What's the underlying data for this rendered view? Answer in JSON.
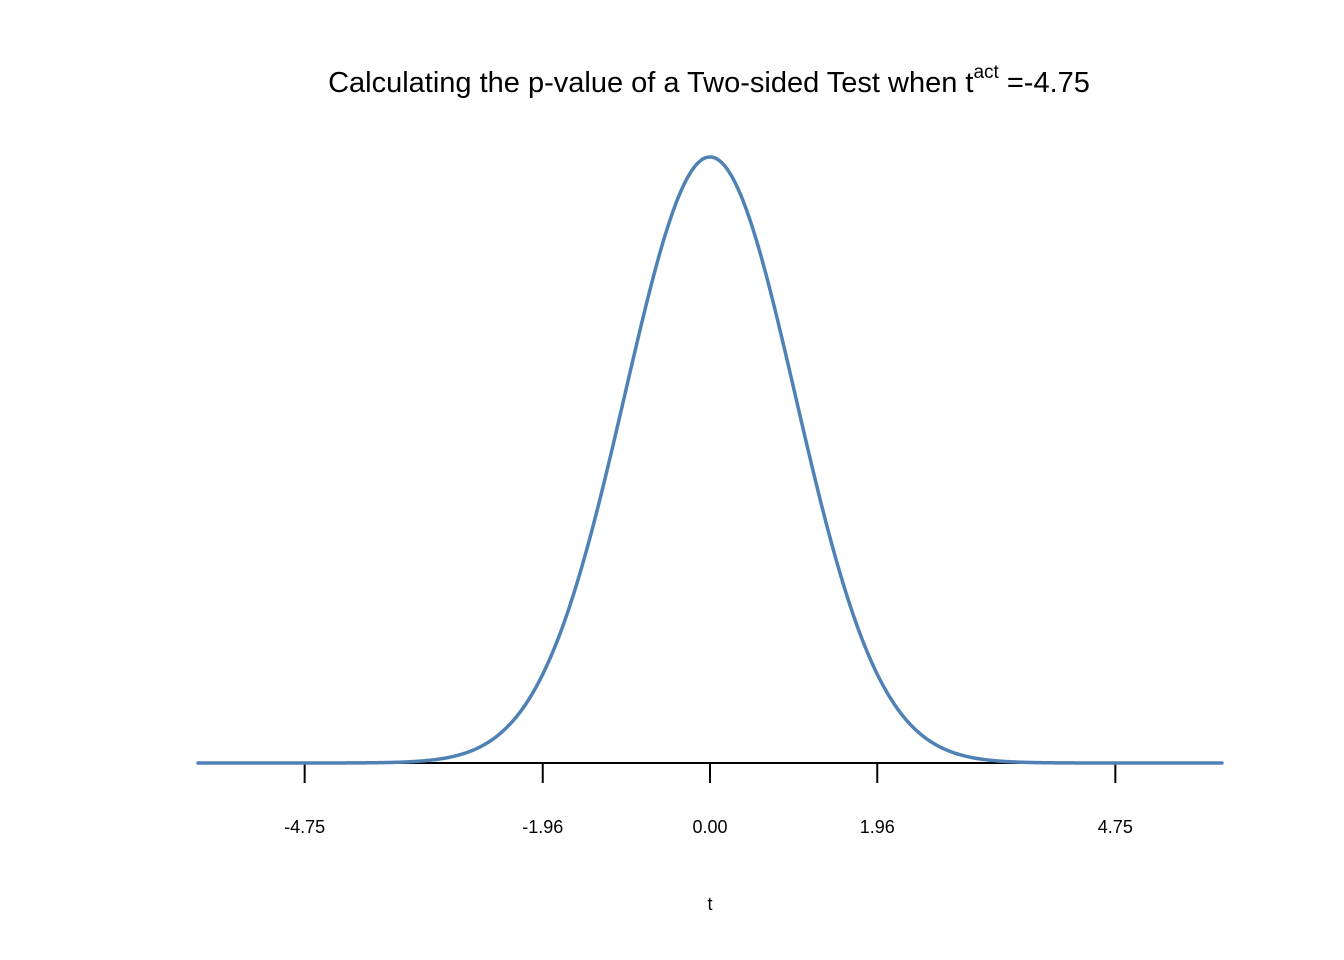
{
  "chart_data": {
    "type": "line",
    "title": {
      "main": "Calculating the p-value of a Two-sided Test when t",
      "superscript": "act",
      "suffix": " =-4.75"
    },
    "xlabel": "t",
    "ylabel": "",
    "xlim": [
      -6,
      6
    ],
    "ylim": [
      0,
      0.3989
    ],
    "x_ticks": [
      -4.75,
      -1.96,
      0.0,
      1.96,
      4.75
    ],
    "x_tick_labels": [
      "-4.75",
      "-1.96",
      "0.00",
      "1.96",
      "4.75"
    ],
    "grid": false,
    "legend": "none",
    "series": [
      {
        "curve": "standard normal density",
        "x": [
          -6.0,
          -5.5,
          -5.0,
          -4.5,
          -4.0,
          -3.5,
          -3.0,
          -2.5,
          -2.0,
          -1.5,
          -1.0,
          -0.5,
          0.0,
          0.5,
          1.0,
          1.5,
          2.0,
          2.5,
          3.0,
          3.5,
          4.0,
          4.5,
          5.0,
          5.5,
          6.0
        ],
        "y": [
          0.0,
          0.0,
          0.0,
          0.0,
          0.0001,
          0.0009,
          0.0044,
          0.0175,
          0.054,
          0.1295,
          0.242,
          0.3521,
          0.3989,
          0.3521,
          0.242,
          0.1295,
          0.054,
          0.0175,
          0.0044,
          0.0009,
          0.0001,
          0.0,
          0.0,
          0.0,
          0.0
        ],
        "color": "#4f81b5"
      }
    ],
    "colors": {
      "curve": "#4f81b5",
      "axis": "#000000",
      "text": "#000000",
      "background": "#ffffff"
    }
  }
}
